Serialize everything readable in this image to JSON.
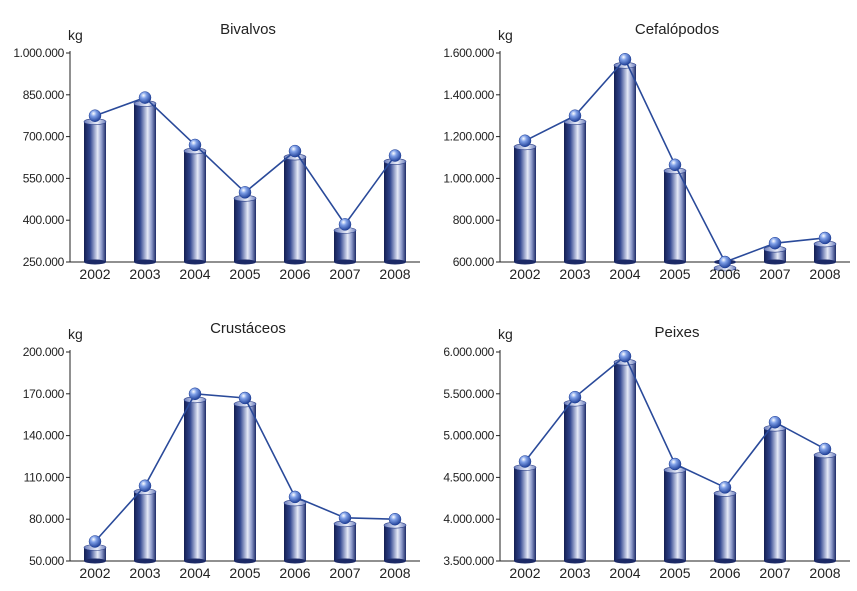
{
  "chart_data": [
    {
      "type": "bar",
      "title": "Bivalvos",
      "ylabel": "kg",
      "categories": [
        "2002",
        "2003",
        "2004",
        "2005",
        "2006",
        "2007",
        "2008"
      ],
      "values": [
        775000,
        840000,
        670000,
        500000,
        648000,
        385000,
        632000
      ],
      "ylim": [
        250000,
        1000000
      ],
      "yticks": [
        250000,
        400000,
        550000,
        700000,
        850000,
        1000000
      ],
      "ytick_labels": [
        "250.000",
        "400.000",
        "550.000",
        "700.000",
        "850.000",
        "1.000.000"
      ],
      "overlay": "line with markers"
    },
    {
      "type": "bar",
      "title": "Cefalópodos",
      "ylabel": "kg",
      "categories": [
        "2002",
        "2003",
        "2004",
        "2005",
        "2006",
        "2007",
        "2008"
      ],
      "values": [
        1180000,
        1300000,
        1570000,
        1065000,
        600000,
        690000,
        715000
      ],
      "ylim": [
        600000,
        1600000
      ],
      "yticks": [
        600000,
        800000,
        1000000,
        1200000,
        1400000,
        1600000
      ],
      "ytick_labels": [
        "600.000",
        "800.000",
        "1.000.000",
        "1.200.000",
        "1.400.000",
        "1.600.000"
      ],
      "overlay": "line with markers"
    },
    {
      "type": "bar",
      "title": "Crustáceos",
      "ylabel": "kg",
      "categories": [
        "2002",
        "2003",
        "2004",
        "2005",
        "2006",
        "2007",
        "2008"
      ],
      "values": [
        64000,
        104000,
        170000,
        167000,
        96000,
        81000,
        80000
      ],
      "ylim": [
        50000,
        200000
      ],
      "yticks": [
        50000,
        80000,
        110000,
        140000,
        170000,
        200000
      ],
      "ytick_labels": [
        "50.000",
        "80.000",
        "110.000",
        "140.000",
        "170.000",
        "200.000"
      ],
      "overlay": "line with markers"
    },
    {
      "type": "bar",
      "title": "Peixes",
      "ylabel": "kg",
      "categories": [
        "2002",
        "2003",
        "2004",
        "2005",
        "2006",
        "2007",
        "2008"
      ],
      "values": [
        4690000,
        5460000,
        5950000,
        4660000,
        4380000,
        5160000,
        4840000
      ],
      "ylim": [
        3500000,
        6000000
      ],
      "yticks": [
        3500000,
        4000000,
        4500000,
        5000000,
        5500000,
        6000000
      ],
      "ytick_labels": [
        "3.500.000",
        "4.000.000",
        "4.500.000",
        "5.000.000",
        "5.500.000",
        "6.000.000"
      ],
      "overlay": "line with markers"
    }
  ],
  "colors": {
    "bar_dark": "#1c2a66",
    "bar_light": "#e6eaf7",
    "line": "#2a4a9a",
    "marker": "#3a64c8",
    "axis": "#222222"
  }
}
